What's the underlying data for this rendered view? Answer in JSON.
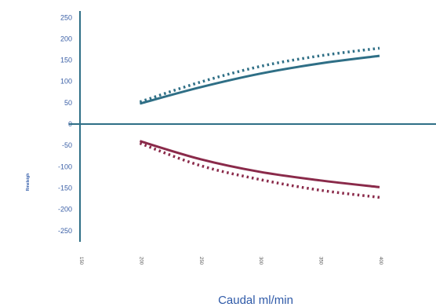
{
  "chart_data": {
    "type": "line",
    "xlabel": "Caudal ml/min",
    "ylabel": "Rmeleigh",
    "x_ticks": [
      "150",
      "200",
      "250",
      "300",
      "350",
      "400"
    ],
    "y_ticks": [
      "250",
      "200",
      "150",
      "100",
      "50",
      "0",
      "-50",
      "-100",
      "-150",
      "-200",
      "-250"
    ],
    "xlim": [
      150,
      400
    ],
    "ylim": [
      -250,
      250
    ],
    "grid": false,
    "legend": "none",
    "x": [
      200,
      250,
      300,
      350,
      400
    ],
    "series": [
      {
        "values": [
          48,
          86,
          118,
          142,
          160
        ],
        "color": "#2f6f86",
        "style": "solid"
      },
      {
        "values": [
          52,
          98,
          135,
          160,
          178
        ],
        "color": "#2f6f86",
        "style": "dotted"
      },
      {
        "values": [
          -40,
          -82,
          -112,
          -132,
          -148
        ],
        "color": "#8a2a4a",
        "style": "solid"
      },
      {
        "values": [
          -45,
          -97,
          -130,
          -155,
          -172
        ],
        "color": "#8a2a4a",
        "style": "dotted"
      }
    ]
  }
}
